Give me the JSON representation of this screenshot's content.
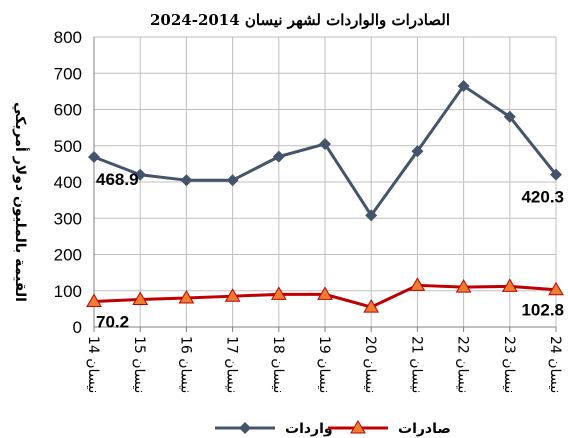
{
  "chart_data": {
    "type": "line",
    "title": "الصادرات والواردات لشهر نيسان 2014-2024",
    "ylabel": "القيمة بالمليون دولار أمريكي",
    "xlabel": "",
    "ylim": [
      0,
      800
    ],
    "yticks": [
      0,
      100,
      200,
      300,
      400,
      500,
      600,
      700,
      800
    ],
    "grid": true,
    "legend_position": "bottom",
    "categories": [
      "نيسان 14",
      "نيسان 15",
      "نيسان 16",
      "نيسان 17",
      "نيسان 18",
      "نيسان 19",
      "نيسان 20",
      "نيسان 21",
      "نيسان 22",
      "نيسان 23",
      "نيسان 24"
    ],
    "series": [
      {
        "name": "واردات",
        "color": "#44546a",
        "marker": "diamond",
        "values": [
          468.9,
          420,
          405,
          405,
          470,
          505,
          308,
          485,
          665,
          580,
          420.3
        ]
      },
      {
        "name": "صادرات",
        "color": "#c00000",
        "marker_color": "#ed7d31",
        "marker": "triangle",
        "values": [
          70.2,
          76,
          80,
          85,
          90,
          90,
          55,
          115,
          110,
          112,
          102.8
        ]
      }
    ],
    "data_labels": [
      {
        "series": 0,
        "index": 0,
        "text": "468.9"
      },
      {
        "series": 0,
        "index": 10,
        "text": "420.3"
      },
      {
        "series": 1,
        "index": 0,
        "text": "70.2"
      },
      {
        "series": 1,
        "index": 10,
        "text": "102.8"
      }
    ]
  }
}
